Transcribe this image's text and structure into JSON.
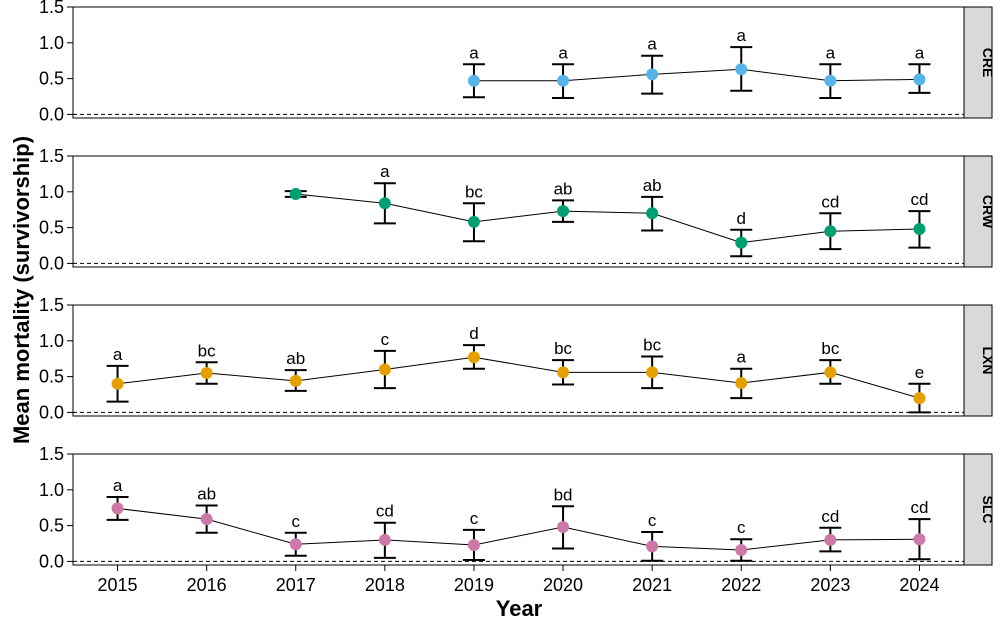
{
  "chart_data": {
    "type": "line",
    "xlabel": "Year",
    "ylabel": "Mean mortality (survivorship)",
    "x": [
      2015,
      2016,
      2017,
      2018,
      2019,
      2020,
      2021,
      2022,
      2023,
      2024
    ],
    "xlim": [
      2014.5,
      2024.5
    ],
    "ylim": [
      -0.05,
      1.5
    ],
    "yticks": [
      0.0,
      0.5,
      1.0,
      1.5
    ],
    "ytick_labels": [
      "0.0",
      "0.5",
      "1.0",
      "1.5"
    ],
    "reference_line": {
      "y": 0,
      "style": "dashed"
    },
    "panels": [
      {
        "name": "CRE",
        "color": "#56b4e9",
        "points": [
          {
            "x": 2019,
            "y": 0.47,
            "lo": 0.24,
            "hi": 0.7,
            "label": "a"
          },
          {
            "x": 2020,
            "y": 0.47,
            "lo": 0.23,
            "hi": 0.7,
            "label": "a"
          },
          {
            "x": 2021,
            "y": 0.56,
            "lo": 0.29,
            "hi": 0.82,
            "label": "a"
          },
          {
            "x": 2022,
            "y": 0.63,
            "lo": 0.33,
            "hi": 0.94,
            "label": "a"
          },
          {
            "x": 2023,
            "y": 0.47,
            "lo": 0.23,
            "hi": 0.7,
            "label": "a"
          },
          {
            "x": 2024,
            "y": 0.49,
            "lo": 0.3,
            "hi": 0.7,
            "label": "a"
          }
        ]
      },
      {
        "name": "CRW",
        "color": "#009e73",
        "points": [
          {
            "x": 2017,
            "y": 0.97,
            "lo": 0.93,
            "hi": 1.01,
            "label": ""
          },
          {
            "x": 2018,
            "y": 0.84,
            "lo": 0.56,
            "hi": 1.12,
            "label": "a"
          },
          {
            "x": 2019,
            "y": 0.58,
            "lo": 0.31,
            "hi": 0.84,
            "label": "bc"
          },
          {
            "x": 2020,
            "y": 0.73,
            "lo": 0.58,
            "hi": 0.88,
            "label": "ab"
          },
          {
            "x": 2021,
            "y": 0.7,
            "lo": 0.46,
            "hi": 0.93,
            "label": "ab"
          },
          {
            "x": 2022,
            "y": 0.29,
            "lo": 0.1,
            "hi": 0.47,
            "label": "d"
          },
          {
            "x": 2023,
            "y": 0.45,
            "lo": 0.2,
            "hi": 0.7,
            "label": "cd"
          },
          {
            "x": 2024,
            "y": 0.48,
            "lo": 0.22,
            "hi": 0.73,
            "label": "cd"
          }
        ]
      },
      {
        "name": "LXN",
        "color": "#e69f00",
        "points": [
          {
            "x": 2015,
            "y": 0.4,
            "lo": 0.15,
            "hi": 0.65,
            "label": "a"
          },
          {
            "x": 2016,
            "y": 0.55,
            "lo": 0.4,
            "hi": 0.7,
            "label": "bc"
          },
          {
            "x": 2017,
            "y": 0.44,
            "lo": 0.3,
            "hi": 0.59,
            "label": "ab"
          },
          {
            "x": 2018,
            "y": 0.6,
            "lo": 0.34,
            "hi": 0.86,
            "label": "c"
          },
          {
            "x": 2019,
            "y": 0.77,
            "lo": 0.61,
            "hi": 0.94,
            "label": "d"
          },
          {
            "x": 2020,
            "y": 0.56,
            "lo": 0.39,
            "hi": 0.73,
            "label": "bc"
          },
          {
            "x": 2021,
            "y": 0.56,
            "lo": 0.34,
            "hi": 0.78,
            "label": "bc"
          },
          {
            "x": 2022,
            "y": 0.41,
            "lo": 0.2,
            "hi": 0.61,
            "label": "a"
          },
          {
            "x": 2023,
            "y": 0.56,
            "lo": 0.4,
            "hi": 0.73,
            "label": "bc"
          },
          {
            "x": 2024,
            "y": 0.2,
            "lo": 0.0,
            "hi": 0.4,
            "label": "e"
          }
        ]
      },
      {
        "name": "SLC",
        "color": "#cc79a7",
        "points": [
          {
            "x": 2015,
            "y": 0.74,
            "lo": 0.58,
            "hi": 0.9,
            "label": "a"
          },
          {
            "x": 2016,
            "y": 0.59,
            "lo": 0.4,
            "hi": 0.78,
            "label": "ab"
          },
          {
            "x": 2017,
            "y": 0.24,
            "lo": 0.08,
            "hi": 0.4,
            "label": "c"
          },
          {
            "x": 2018,
            "y": 0.3,
            "lo": 0.05,
            "hi": 0.54,
            "label": "cd"
          },
          {
            "x": 2019,
            "y": 0.23,
            "lo": 0.02,
            "hi": 0.44,
            "label": "c"
          },
          {
            "x": 2020,
            "y": 0.48,
            "lo": 0.18,
            "hi": 0.77,
            "label": "bd"
          },
          {
            "x": 2021,
            "y": 0.21,
            "lo": 0.01,
            "hi": 0.41,
            "label": "c"
          },
          {
            "x": 2022,
            "y": 0.16,
            "lo": 0.01,
            "hi": 0.31,
            "label": "c"
          },
          {
            "x": 2023,
            "y": 0.3,
            "lo": 0.14,
            "hi": 0.47,
            "label": "cd"
          },
          {
            "x": 2024,
            "y": 0.31,
            "lo": 0.03,
            "hi": 0.59,
            "label": "cd"
          }
        ]
      }
    ]
  }
}
